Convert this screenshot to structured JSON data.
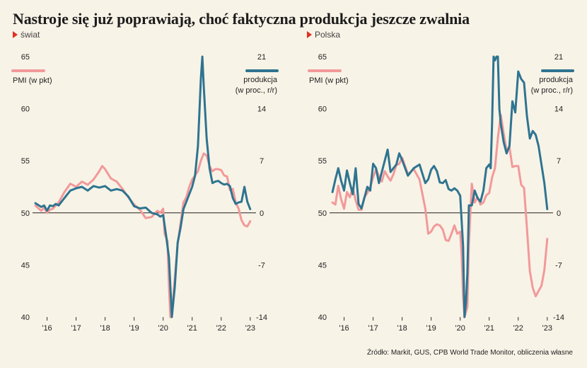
{
  "title": "Nastroje się już poprawiają, choć faktyczna produkcja jeszcze zwalnia",
  "source": "Źródło: Markit, GUS, CPB World Trade Monitor, obliczenia własne",
  "colors": {
    "pmi": "#f2999a",
    "prod": "#2e7490",
    "zero": "#222222",
    "grid": "#bdb6a8"
  },
  "chart_data": [
    {
      "type": "line",
      "panel_label": "świat",
      "legend_left": "PMI (w pkt)",
      "legend_right_1": "produkcja",
      "legend_right_2": "(w proc., r/r)",
      "ylim_left": [
        40,
        65
      ],
      "ylim_right": [
        -14,
        21
      ],
      "yticks_left": [
        "65",
        "60",
        "55",
        "50",
        "45",
        "40"
      ],
      "yticks_right": [
        "21",
        "14",
        "7",
        "0",
        "-7",
        "-14"
      ],
      "xlim": [
        2015.5,
        2023.2
      ],
      "xticks": [
        {
          "x": 2016,
          "label": "'16"
        },
        {
          "x": 2017,
          "label": "'17"
        },
        {
          "x": 2018,
          "label": "'18"
        },
        {
          "x": 2019,
          "label": "'19"
        },
        {
          "x": 2020,
          "label": "'20"
        },
        {
          "x": 2021,
          "label": "'21"
        },
        {
          "x": 2022,
          "label": "'22"
        },
        {
          "x": 2023,
          "label": "'23"
        }
      ],
      "series": [
        {
          "key": "pmi",
          "axis": "left",
          "x": [
            2015.6,
            2015.8,
            2015.9,
            2016.0,
            2016.1,
            2016.2,
            2016.4,
            2016.6,
            2016.8,
            2017.0,
            2017.2,
            2017.4,
            2017.6,
            2017.8,
            2017.9,
            2018.0,
            2018.2,
            2018.4,
            2018.6,
            2018.8,
            2019.0,
            2019.2,
            2019.4,
            2019.6,
            2019.8,
            2019.9,
            2020.0,
            2020.05,
            2020.15,
            2020.2,
            2020.25,
            2020.35,
            2020.5,
            2020.6,
            2020.7,
            2020.8,
            2020.9,
            2021.0,
            2021.1,
            2021.2,
            2021.3,
            2021.4,
            2021.5,
            2021.6,
            2021.7,
            2021.8,
            2021.9,
            2022.0,
            2022.1,
            2022.2,
            2022.3,
            2022.4,
            2022.5,
            2022.6,
            2022.7,
            2022.8,
            2022.9,
            2023.0
          ],
          "y": [
            50.7,
            50.2,
            50.5,
            50.0,
            50.3,
            50.4,
            51.0,
            52.0,
            52.8,
            52.5,
            53.0,
            52.7,
            53.2,
            54.0,
            54.5,
            54.2,
            53.3,
            53.0,
            52.3,
            51.5,
            50.8,
            50.3,
            49.5,
            49.6,
            50.2,
            50.0,
            50.4,
            48.0,
            47.3,
            43.0,
            39.0,
            42.0,
            47.0,
            49.0,
            51.0,
            51.5,
            52.5,
            53.2,
            53.6,
            54.0,
            55.0,
            55.7,
            55.5,
            54.5,
            54.0,
            54.2,
            54.2,
            54.1,
            53.6,
            53.5,
            52.2,
            52.3,
            51.0,
            50.4,
            49.3,
            48.8,
            48.7,
            49.2
          ]
        },
        {
          "key": "prod",
          "axis": "right",
          "x": [
            2015.6,
            2015.8,
            2015.9,
            2016.0,
            2016.1,
            2016.2,
            2016.3,
            2016.4,
            2016.6,
            2016.8,
            2017.0,
            2017.2,
            2017.4,
            2017.6,
            2017.8,
            2018.0,
            2018.2,
            2018.4,
            2018.6,
            2018.8,
            2019.0,
            2019.2,
            2019.4,
            2019.6,
            2019.8,
            2019.9,
            2020.0,
            2020.1,
            2020.2,
            2020.3,
            2020.4,
            2020.5,
            2020.6,
            2020.7,
            2020.8,
            2020.9,
            2021.0,
            2021.1,
            2021.2,
            2021.3,
            2021.35,
            2021.4,
            2021.5,
            2021.6,
            2021.7,
            2021.8,
            2021.9,
            2022.0,
            2022.1,
            2022.2,
            2022.3,
            2022.4,
            2022.5,
            2022.6,
            2022.7,
            2022.8,
            2022.9,
            2023.0
          ],
          "y": [
            1.3,
            0.8,
            1.0,
            0.3,
            1.0,
            0.9,
            1.2,
            1.0,
            2.0,
            3.0,
            3.3,
            3.5,
            3.0,
            3.6,
            3.4,
            3.6,
            3.0,
            3.2,
            3.0,
            2.2,
            0.9,
            0.6,
            0.7,
            0.0,
            -0.2,
            -0.5,
            -0.3,
            -3.0,
            -6.0,
            -14.8,
            -10.0,
            -4.0,
            -2.0,
            0.5,
            1.5,
            2.5,
            3.5,
            5.0,
            9.0,
            18.0,
            21.5,
            17.0,
            10.0,
            6.0,
            4.0,
            4.2,
            4.3,
            4.0,
            3.8,
            3.9,
            3.6,
            2.0,
            1.2,
            1.4,
            1.5,
            3.5,
            1.5,
            0.5
          ]
        }
      ]
    },
    {
      "type": "line",
      "panel_label": "Polska",
      "legend_left": "PMI (w pkt)",
      "legend_right_1": "produkcja",
      "legend_right_2": "(w proc., r/r)",
      "ylim_left": [
        40,
        65
      ],
      "ylim_right": [
        -14,
        21
      ],
      "yticks_left": [
        "65",
        "60",
        "55",
        "50",
        "45",
        "40"
      ],
      "yticks_right": [
        "21",
        "14",
        "7",
        "0",
        "-7",
        "-14"
      ],
      "xlim": [
        2015.5,
        2023.2
      ],
      "xticks": [
        {
          "x": 2016,
          "label": "'16"
        },
        {
          "x": 2017,
          "label": "'17"
        },
        {
          "x": 2018,
          "label": "'18"
        },
        {
          "x": 2019,
          "label": "'19"
        },
        {
          "x": 2020,
          "label": "'20"
        },
        {
          "x": 2021,
          "label": "'21"
        },
        {
          "x": 2022,
          "label": "'22"
        },
        {
          "x": 2023,
          "label": "'23"
        }
      ],
      "series": [
        {
          "key": "pmi",
          "axis": "left",
          "x": [
            2015.6,
            2015.7,
            2015.8,
            2015.9,
            2016.0,
            2016.1,
            2016.2,
            2016.3,
            2016.4,
            2016.5,
            2016.6,
            2016.7,
            2016.8,
            2016.9,
            2017.0,
            2017.1,
            2017.2,
            2017.3,
            2017.4,
            2017.5,
            2017.6,
            2017.7,
            2017.8,
            2017.9,
            2018.0,
            2018.2,
            2018.4,
            2018.6,
            2018.8,
            2018.9,
            2019.0,
            2019.1,
            2019.2,
            2019.3,
            2019.4,
            2019.5,
            2019.6,
            2019.7,
            2019.8,
            2019.9,
            2020.0,
            2020.05,
            2020.1,
            2020.15,
            2020.2,
            2020.25,
            2020.3,
            2020.4,
            2020.5,
            2020.6,
            2020.7,
            2020.8,
            2020.9,
            2021.0,
            2021.1,
            2021.2,
            2021.3,
            2021.4,
            2021.5,
            2021.6,
            2021.7,
            2021.8,
            2021.9,
            2022.0,
            2022.1,
            2022.2,
            2022.3,
            2022.4,
            2022.5,
            2022.6,
            2022.7,
            2022.8,
            2022.9,
            2023.0
          ],
          "y": [
            51.0,
            50.8,
            52.6,
            51.3,
            50.4,
            52.0,
            51.5,
            52.4,
            51.2,
            50.3,
            50.3,
            51.5,
            51.9,
            52.5,
            53.4,
            54.2,
            53.5,
            53.0,
            54.0,
            53.5,
            53.1,
            53.7,
            54.6,
            54.7,
            55.3,
            53.7,
            54.2,
            53.2,
            50.4,
            48.0,
            48.2,
            48.7,
            48.9,
            48.8,
            48.4,
            47.4,
            47.3,
            48.0,
            48.8,
            48.0,
            48.2,
            46.0,
            42.0,
            38.0,
            40.5,
            41.0,
            47.0,
            52.8,
            51.0,
            51.5,
            50.8,
            51.0,
            51.7,
            51.9,
            53.4,
            54.3,
            57.2,
            59.4,
            57.6,
            56.0,
            56.3,
            54.4,
            54.5,
            54.5,
            52.7,
            52.4,
            48.5,
            44.4,
            42.8,
            42.0,
            42.5,
            43.0,
            44.5,
            47.5
          ]
        },
        {
          "key": "prod",
          "axis": "right",
          "x": [
            2015.6,
            2015.7,
            2015.8,
            2015.9,
            2016.0,
            2016.1,
            2016.2,
            2016.3,
            2016.4,
            2016.5,
            2016.6,
            2016.7,
            2016.8,
            2016.9,
            2017.0,
            2017.1,
            2017.2,
            2017.3,
            2017.4,
            2017.5,
            2017.6,
            2017.7,
            2017.8,
            2017.9,
            2018.0,
            2018.2,
            2018.4,
            2018.6,
            2018.8,
            2018.9,
            2019.0,
            2019.1,
            2019.2,
            2019.3,
            2019.4,
            2019.5,
            2019.6,
            2019.7,
            2019.8,
            2019.9,
            2020.0,
            2020.05,
            2020.1,
            2020.15,
            2020.2,
            2020.25,
            2020.3,
            2020.4,
            2020.5,
            2020.6,
            2020.7,
            2020.8,
            2020.9,
            2021.0,
            2021.05,
            2021.1,
            2021.15,
            2021.2,
            2021.25,
            2021.3,
            2021.35,
            2021.4,
            2021.5,
            2021.6,
            2021.7,
            2021.8,
            2021.9,
            2022.0,
            2022.1,
            2022.2,
            2022.3,
            2022.4,
            2022.5,
            2022.6,
            2022.7,
            2022.8,
            2022.9,
            2023.0
          ],
          "y": [
            2.8,
            4.5,
            6.0,
            4.3,
            3.0,
            5.7,
            4.0,
            2.5,
            6.0,
            1.2,
            0.6,
            2.0,
            3.5,
            3.0,
            6.6,
            6.0,
            4.0,
            5.5,
            7.0,
            8.5,
            5.5,
            6.0,
            6.5,
            8.0,
            7.1,
            5.0,
            6.0,
            6.5,
            4.0,
            4.5,
            5.8,
            6.3,
            5.6,
            4.1,
            4.0,
            4.4,
            3.2,
            3.0,
            3.3,
            3.0,
            2.3,
            -1.0,
            -4.5,
            -14.0,
            -12.0,
            -8.0,
            1.0,
            1.0,
            3.0,
            2.0,
            1.5,
            3.0,
            6.0,
            6.5,
            6.0,
            12.0,
            21.0,
            20.5,
            21.5,
            21.0,
            14.0,
            12.0,
            9.5,
            8.0,
            9.0,
            15.0,
            13.5,
            19.0,
            18.0,
            17.5,
            13.0,
            10.0,
            11.0,
            10.5,
            9.0,
            6.5,
            4.0,
            0.5
          ]
        }
      ]
    }
  ]
}
